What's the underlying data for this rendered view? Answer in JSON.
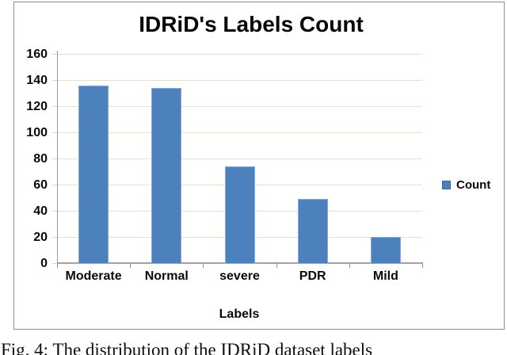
{
  "figure": {
    "title": "IDRiD's Labels Count",
    "x_axis_title": "Labels",
    "legend": {
      "label": "Count",
      "swatch_color": "#4d81bd"
    }
  },
  "chart_data": {
    "type": "bar",
    "title": "IDRiD's Labels Count",
    "categories": [
      "Moderate",
      "Normal",
      "severe",
      "PDR",
      "Mild"
    ],
    "series": [
      {
        "name": "Count",
        "values": [
          136,
          134,
          74,
          49,
          20
        ]
      }
    ],
    "xlabel": "Labels",
    "ylabel": "",
    "ylim": [
      0,
      160
    ],
    "ytick_step": 20,
    "grid": true,
    "legend_position": "right",
    "bar_color": "#4d81bd",
    "gridline_color": "#e7e0ca"
  },
  "caption": {
    "text": "Fig. 4: The distribution of the IDRiD dataset labels"
  }
}
